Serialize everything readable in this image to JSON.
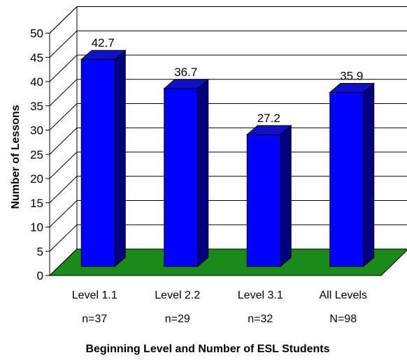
{
  "chart_data": {
    "type": "bar",
    "style": "3d-column",
    "categories": [
      "Level 1.1",
      "Level 2.2",
      "Level 3.1",
      "All Levels"
    ],
    "category_counts": [
      "n=37",
      "n=29",
      "n=32",
      "N=98"
    ],
    "values": [
      42.7,
      36.7,
      27.2,
      35.9
    ],
    "data_labels": [
      "42.7",
      "36.7",
      "27.2",
      "35.9"
    ],
    "xlabel": "Beginning Level and Number of ESL Students",
    "ylabel": "Number of Lessons",
    "ylim": [
      0,
      50
    ],
    "yticks": [
      0,
      5,
      10,
      15,
      20,
      25,
      30,
      35,
      40,
      45,
      50
    ],
    "grid": true,
    "legend": "none",
    "colors": {
      "bar_front": "#0000ff",
      "bar_side": "#000080",
      "bar_top": "#1010c8",
      "floor": "#1a8a1a",
      "wall": "#ffffff",
      "gridline": "#000000"
    }
  }
}
